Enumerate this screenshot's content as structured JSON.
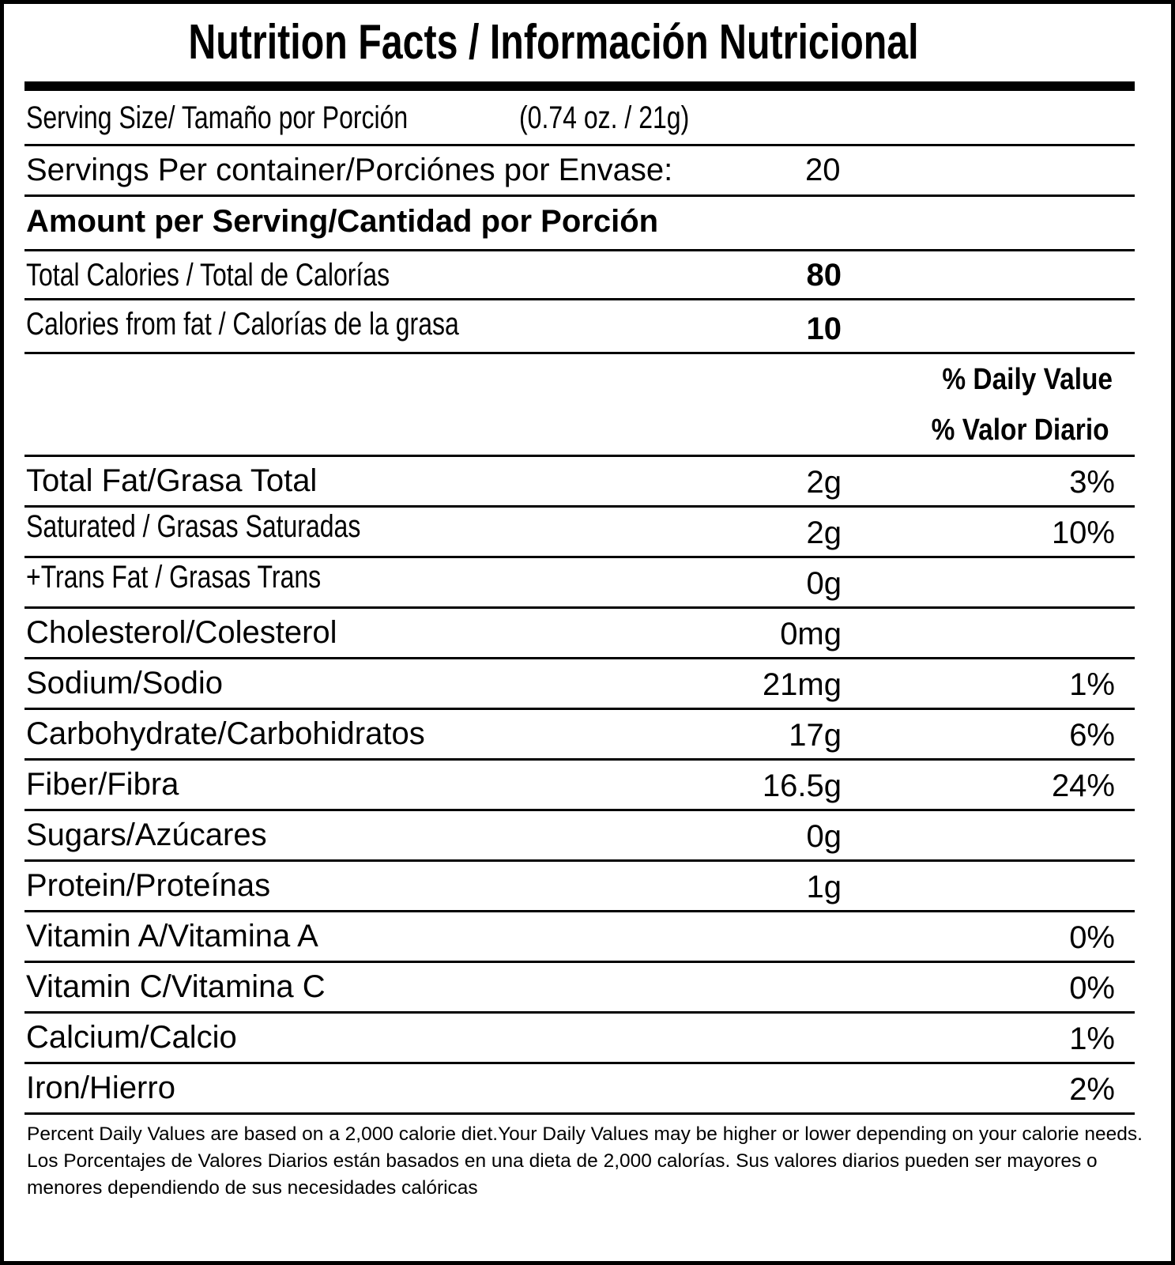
{
  "title": "Nutrition Facts / Información Nutricional",
  "serving_size": {
    "label": "Serving Size/ Tamaño por Porción",
    "value": "(0.74 oz. / 21g)"
  },
  "servings_per_container": {
    "label": "Servings Per container/Porciónes por Envase:",
    "value": "20"
  },
  "amount_per_serving": "Amount per Serving/Cantidad por Porción",
  "total_calories": {
    "label": "Total Calories / Total de Calorías",
    "value": "80"
  },
  "calories_from_fat": {
    "label": "Calories from fat / Calorías de la grasa",
    "value": "10"
  },
  "daily_value_header": {
    "en": "% Daily Value",
    "es": "% Valor Diario"
  },
  "nutrients": [
    {
      "label": "Total Fat/Grasa Total",
      "amount": "2g",
      "dv": "3%",
      "condensed": false
    },
    {
      "label": "Saturated / Grasas Saturadas",
      "amount": "2g",
      "dv": "10%",
      "condensed": true
    },
    {
      "label": "+Trans Fat / Grasas Trans",
      "amount": "0g",
      "dv": "",
      "condensed": true
    },
    {
      "label": "Cholesterol/Colesterol",
      "amount": "0mg",
      "dv": "",
      "condensed": false
    },
    {
      "label": "Sodium/Sodio",
      "amount": "21mg",
      "dv": "1%",
      "condensed": false
    },
    {
      "label": "Carbohydrate/Carbohidratos",
      "amount": "17g",
      "dv": "6%",
      "condensed": false
    },
    {
      "label": "Fiber/Fibra",
      "amount": "16.5g",
      "dv": "24%",
      "condensed": false
    },
    {
      "label": "Sugars/Azúcares",
      "amount": "0g",
      "dv": "",
      "condensed": false
    },
    {
      "label": "Protein/Proteínas",
      "amount": "1g",
      "dv": "",
      "condensed": false
    },
    {
      "label": "Vitamin A/Vitamina A",
      "amount": "",
      "dv": "0%",
      "condensed": false
    },
    {
      "label": "Vitamin C/Vitamina C",
      "amount": "",
      "dv": "0%",
      "condensed": false
    },
    {
      "label": "Calcium/Calcio",
      "amount": "",
      "dv": "1%",
      "condensed": false
    },
    {
      "label": "Iron/Hierro",
      "amount": "",
      "dv": "2%",
      "condensed": false
    }
  ],
  "footnote": {
    "en": "Percent Daily Values are based on a 2,000 calorie diet.Your Daily Values may be higher or lower depending on your calorie needs.",
    "es": "Los Porcentajes de Valores Diarios están basados en una dieta de 2,000 calorías. Sus valores diarios pueden ser mayores o menores dependiendo de sus necesidades calóricas"
  }
}
